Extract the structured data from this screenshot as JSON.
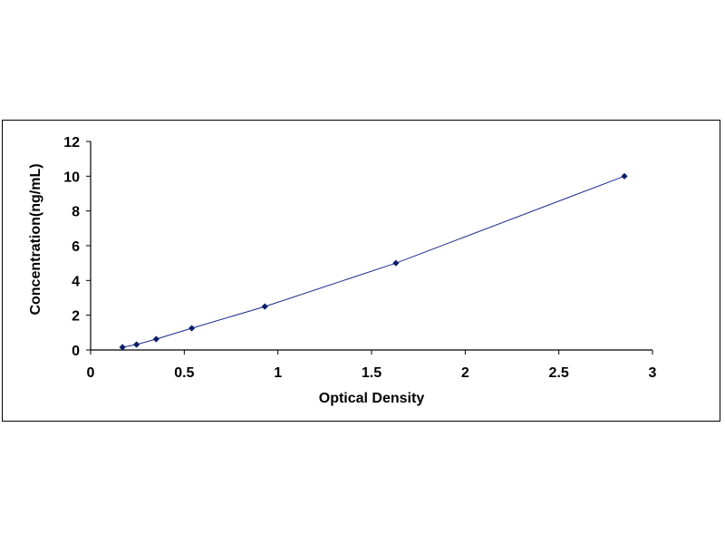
{
  "chart_data": {
    "type": "scatter",
    "title": "",
    "xlabel": "Optical Density",
    "ylabel": "Concentration(ng/mL)",
    "xlim": [
      0,
      3
    ],
    "ylim": [
      0,
      12
    ],
    "x_ticks": [
      "0",
      "0.5",
      "1",
      "1.5",
      "2",
      "2.5",
      "3"
    ],
    "y_ticks": [
      "0",
      "2",
      "4",
      "6",
      "8",
      "10",
      "12"
    ],
    "grid": false,
    "legend": "none",
    "trendline": true,
    "marker_color": "#0b1e6b",
    "line_color": "#1a2a8a",
    "series": [
      {
        "x": [
          0.17,
          0.245,
          0.35,
          0.54,
          0.93,
          1.63,
          2.85
        ],
        "y": [
          0.156,
          0.312,
          0.625,
          1.25,
          2.5,
          5,
          10
        ]
      }
    ]
  }
}
